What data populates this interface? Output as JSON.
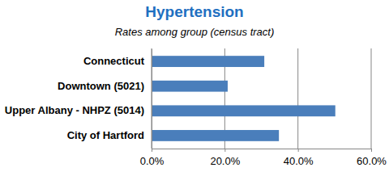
{
  "chart_data": {
    "type": "bar",
    "orientation": "horizontal",
    "title": "Hypertension",
    "subtitle": "Rates among group (census tract)",
    "categories": [
      "Connecticut",
      "Downtown (5021)",
      "Upper Albany - NHPZ (5014)",
      "City of Hartford"
    ],
    "values": [
      30.8,
      20.8,
      50.2,
      34.8
    ],
    "color": "#4a7ebb",
    "xlim": [
      0,
      60
    ],
    "xticks": [
      {
        "value": 0,
        "label": "0.0%"
      },
      {
        "value": 20,
        "label": "20.0%"
      },
      {
        "value": 40,
        "label": "40.0%"
      },
      {
        "value": 60,
        "label": "60.0%"
      }
    ],
    "grid": true
  }
}
